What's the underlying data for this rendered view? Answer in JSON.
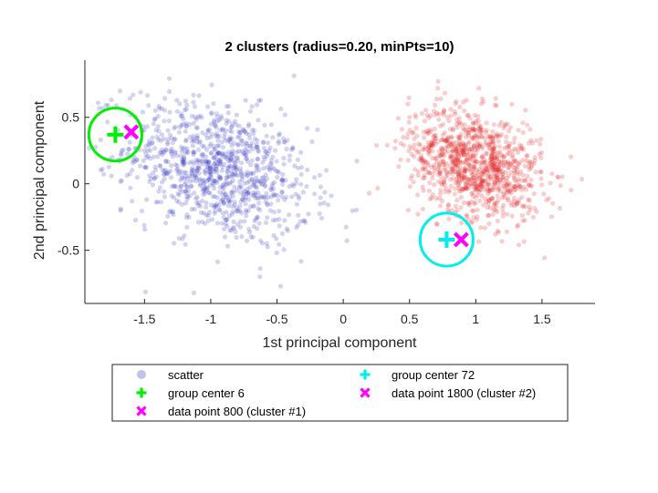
{
  "colors": {
    "cluster1": "#3b3bbf",
    "cluster2": "#dd2222",
    "legend_scatter": "#c2c2e6",
    "center6": "#00ee00",
    "center72": "#00eeee",
    "datapoint": "#ff00ff",
    "axis": "#262626"
  },
  "chart_data": {
    "type": "scatter",
    "title": "2 clusters (radius=0.20, minPts=10)",
    "xlabel": "1st principal component",
    "ylabel": "2nd principal component",
    "xlim": [
      -1.95,
      1.9
    ],
    "ylim": [
      -0.9,
      0.93
    ],
    "xticks": [
      -1.5,
      -1,
      -0.5,
      0,
      0.5,
      1,
      1.5
    ],
    "xtick_labels": [
      "-1.5",
      "-1",
      "-0.5",
      "0",
      "0.5",
      "1",
      "1.5"
    ],
    "yticks": [
      0.5,
      0,
      -0.5
    ],
    "ytick_labels": [
      "0.5",
      "0",
      "-0.5"
    ],
    "grid": false,
    "legend_location": "bottom",
    "clusters": [
      {
        "label": "cluster #1",
        "n": 1000,
        "center": [
          -0.95,
          0.1
        ],
        "spread": [
          0.35,
          0.25
        ],
        "color_key": "cluster1"
      },
      {
        "label": "cluster #2",
        "n": 1000,
        "center": [
          1.0,
          0.15
        ],
        "spread": [
          0.25,
          0.2
        ],
        "color_key": "cluster2"
      }
    ],
    "markers": [
      {
        "name": "group center 6",
        "x": -1.72,
        "y": 0.37,
        "marker": "plus",
        "color_key": "center6",
        "circle_radius": 0.2
      },
      {
        "name": "data point 800 (cluster #1)",
        "x": -1.6,
        "y": 0.39,
        "marker": "x",
        "color_key": "datapoint"
      },
      {
        "name": "group center 72",
        "x": 0.78,
        "y": -0.42,
        "marker": "plus",
        "color_key": "center72",
        "circle_radius": 0.2
      },
      {
        "name": "data point 1800 (cluster #2)",
        "x": 0.89,
        "y": -0.42,
        "marker": "x",
        "color_key": "datapoint"
      }
    ],
    "legend": {
      "entries": [
        {
          "label": "scatter",
          "marker": "dot",
          "color_key": "legend_scatter"
        },
        {
          "label": "group center 6",
          "marker": "plus",
          "color_key": "center6"
        },
        {
          "label": "data point 800 (cluster #1)",
          "marker": "x",
          "color_key": "datapoint"
        },
        {
          "label": "group center 72",
          "marker": "plus",
          "color_key": "center72"
        },
        {
          "label": "data point 1800 (cluster #2)",
          "marker": "x",
          "color_key": "datapoint"
        }
      ]
    }
  }
}
